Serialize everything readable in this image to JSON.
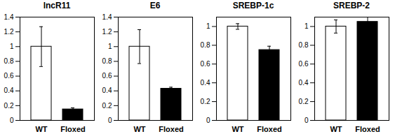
{
  "chart_data": [
    {
      "type": "bar",
      "title": "lncR11",
      "categories": [
        "WT",
        "Floxed"
      ],
      "values": [
        1.0,
        0.15
      ],
      "error": [
        0.27,
        0.02
      ],
      "colors": [
        "#ffffff",
        "#000000"
      ],
      "ylim": [
        0,
        1.4
      ],
      "yticks": [
        0,
        0.2,
        0.4,
        0.6,
        0.8,
        1,
        1.2,
        1.4
      ]
    },
    {
      "type": "bar",
      "title": "E6",
      "categories": [
        "WT",
        "Floxed"
      ],
      "values": [
        1.0,
        0.43
      ],
      "error": [
        0.23,
        0.02
      ],
      "colors": [
        "#ffffff",
        "#000000"
      ],
      "ylim": [
        0,
        1.4
      ],
      "yticks": [
        0,
        0.2,
        0.4,
        0.6,
        0.8,
        1,
        1.2,
        1.4
      ]
    },
    {
      "type": "bar",
      "title": "SREBP-1c",
      "categories": [
        "WT",
        "Floxed"
      ],
      "values": [
        1.0,
        0.75
      ],
      "error": [
        0.03,
        0.04
      ],
      "colors": [
        "#ffffff",
        "#000000"
      ],
      "ylim": [
        0,
        1.1
      ],
      "yticks": [
        0,
        0.2,
        0.4,
        0.6,
        0.8,
        1
      ]
    },
    {
      "type": "bar",
      "title": "SREBP-2",
      "categories": [
        "WT",
        "Floxed"
      ],
      "values": [
        1.0,
        1.05
      ],
      "error": [
        0.07,
        0.05
      ],
      "colors": [
        "#ffffff",
        "#000000"
      ],
      "ylim": [
        0,
        1.1
      ],
      "yticks": [
        0,
        0.2,
        0.4,
        0.6,
        0.8,
        1
      ]
    }
  ]
}
